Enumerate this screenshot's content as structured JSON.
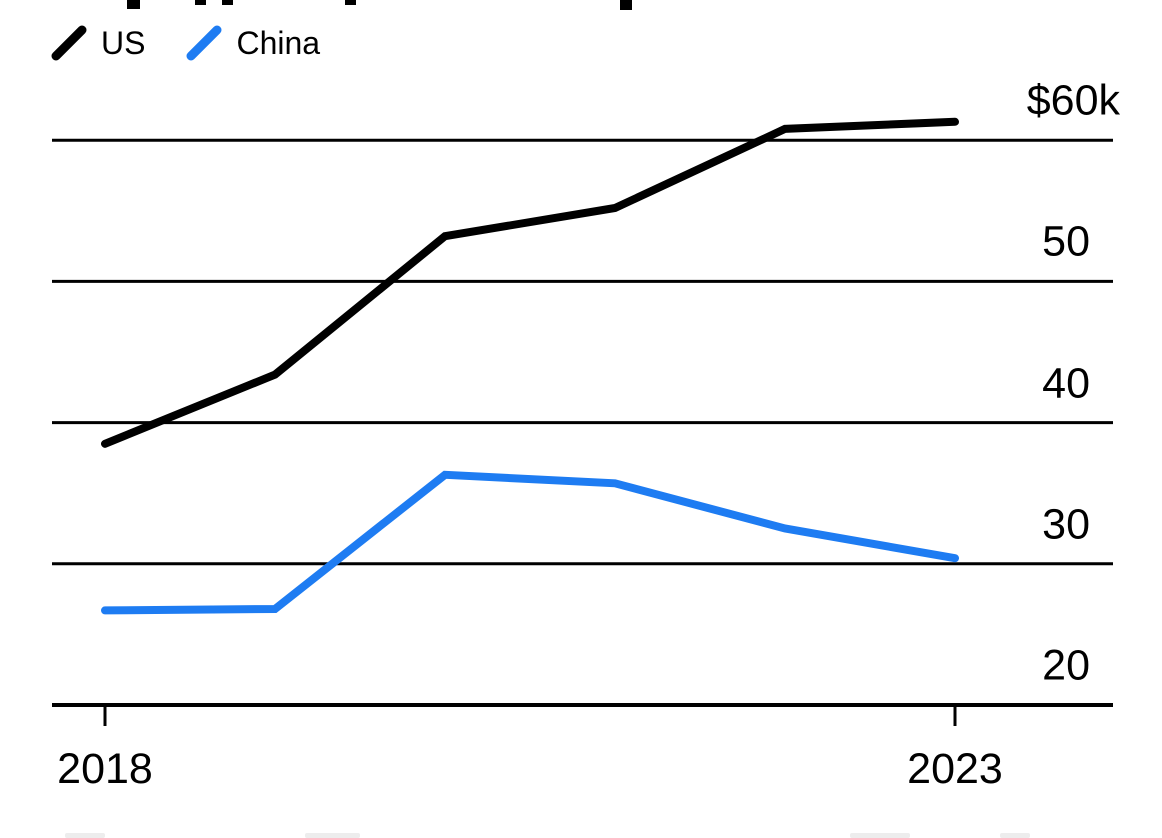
{
  "chart_data": {
    "type": "line",
    "x": [
      2018,
      2019,
      2020,
      2021,
      2022,
      2023
    ],
    "series": [
      {
        "name": "US",
        "color": "#000000",
        "values": [
          38.5,
          43.4,
          53.2,
          55.2,
          60.8,
          61.3
        ]
      },
      {
        "name": "China",
        "color": "#1e7cf2",
        "values": [
          26.7,
          26.8,
          36.3,
          35.7,
          32.5,
          30.4
        ]
      }
    ],
    "yticks": [
      {
        "value": 60,
        "label": "$60k"
      },
      {
        "value": 50,
        "label": "50"
      },
      {
        "value": 40,
        "label": "40"
      },
      {
        "value": 30,
        "label": "30"
      },
      {
        "value": 20,
        "label": "20"
      }
    ],
    "xticks": [
      {
        "value": 2018,
        "label": "2018"
      },
      {
        "value": 2023,
        "label": "2023"
      }
    ],
    "xlim": [
      2018,
      2023
    ],
    "ylim": [
      20,
      62
    ],
    "grid": "horizontal",
    "grid_color": "#000000",
    "legend_position": "top-left",
    "axis_side": "right"
  }
}
